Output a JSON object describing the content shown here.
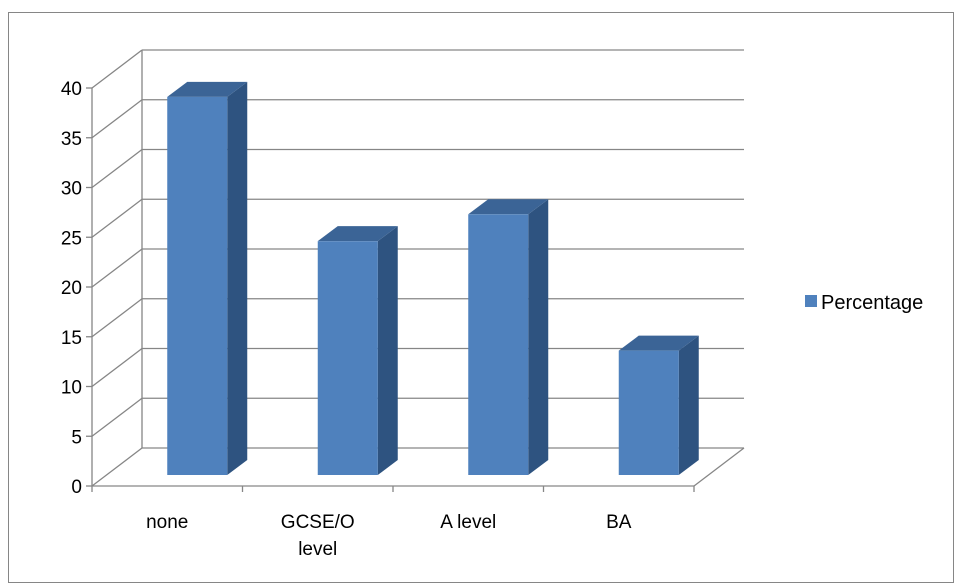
{
  "chart_data": {
    "type": "bar",
    "style": "3d-column",
    "categories": [
      "none",
      "GCSE/O level",
      "A level",
      "BA"
    ],
    "category_lines": [
      [
        "none"
      ],
      [
        "GCSE/O",
        "level"
      ],
      [
        "A level"
      ],
      [
        "BA"
      ]
    ],
    "series": [
      {
        "name": "Percentage",
        "values": [
          38,
          23.5,
          26.2,
          12.5
        ]
      }
    ],
    "title": "",
    "xlabel": "",
    "ylabel": "",
    "ylim": [
      0,
      40
    ],
    "yticks": [
      0,
      5,
      10,
      15,
      20,
      25,
      30,
      35,
      40
    ],
    "grid": true,
    "legend": {
      "position": "right",
      "entries": [
        "Percentage"
      ]
    },
    "colors": {
      "bar_front": "#4f81bd",
      "bar_side": "#2e5380",
      "bar_top": "#3b6496",
      "grid": "#868686",
      "axis": "#868686"
    }
  }
}
